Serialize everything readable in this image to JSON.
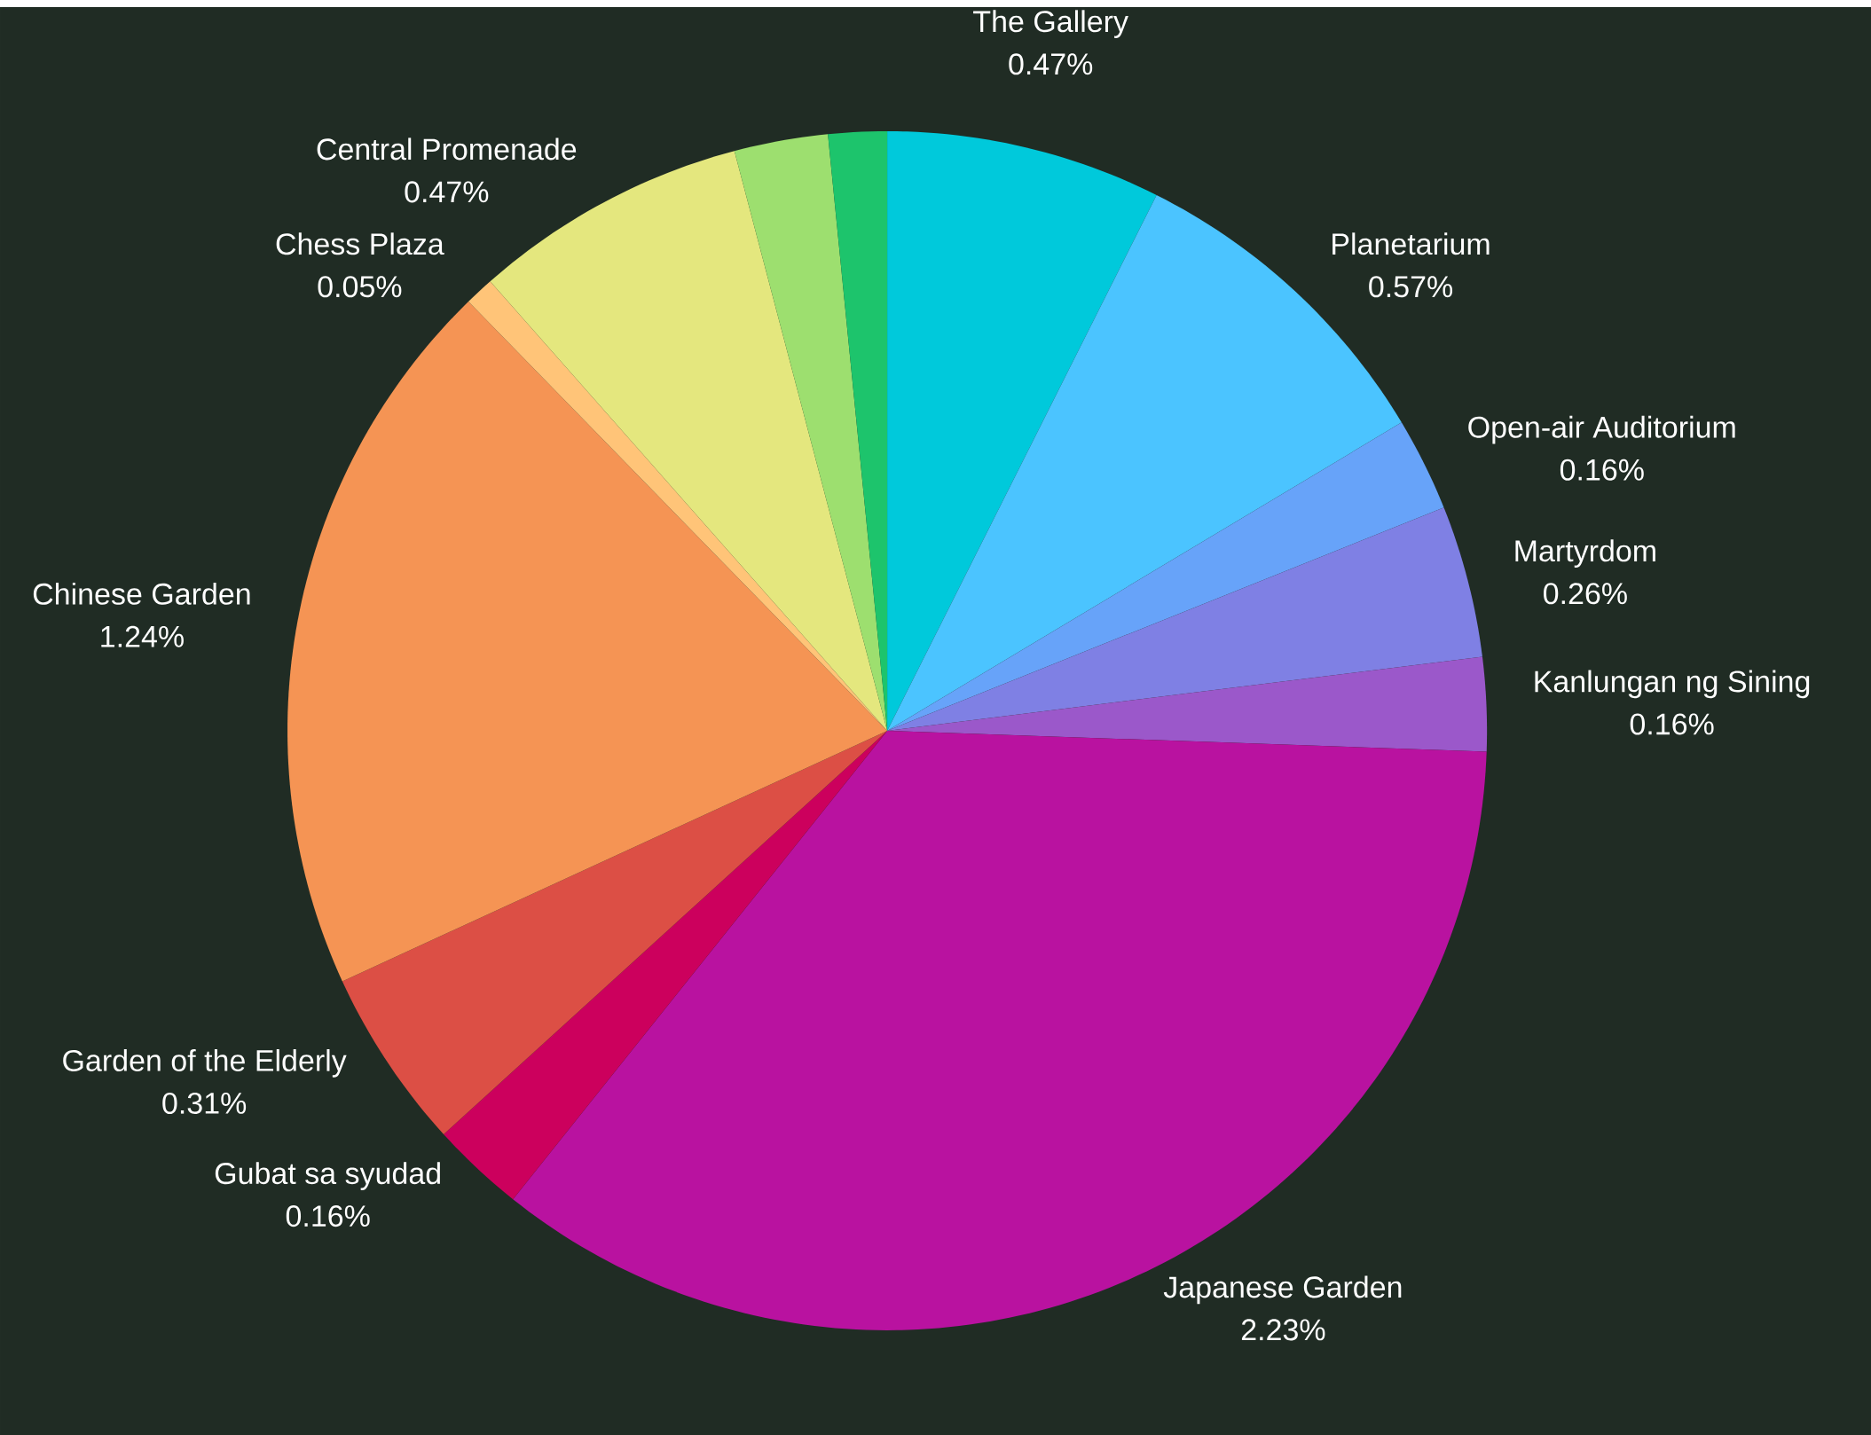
{
  "chart_data": {
    "type": "pie",
    "categories": [
      "The Gallery",
      "Planetarium",
      "Open-air Auditorium",
      "Martyrdom",
      "Kanlungan ng Sining",
      "Japanese Garden",
      "Gubat sa syudad",
      "Garden of the Elderly",
      "Chinese Garden",
      "Chess Plaza",
      "Central Promenade",
      null,
      null
    ],
    "values": [
      0.47,
      0.57,
      0.16,
      0.26,
      0.16,
      2.23,
      0.16,
      0.31,
      1.24,
      0.05,
      0.47,
      0.16,
      0.1
    ],
    "value_labels": [
      "0.47%",
      "0.57%",
      "0.16%",
      "0.26%",
      "0.16%",
      "2.23%",
      "0.16%",
      "0.31%",
      "1.24%",
      "0.05%",
      "0.47%",
      null,
      null
    ],
    "colors": [
      "#00c9db",
      "#4bc4ff",
      "#67a3f9",
      "#7f80e4",
      "#9b58ca",
      "#b912a0",
      "#cc005d",
      "#dc4f45",
      "#f59454",
      "#ffc478",
      "#e4e77e",
      "#9ddf6f",
      "#1dc46c"
    ]
  }
}
